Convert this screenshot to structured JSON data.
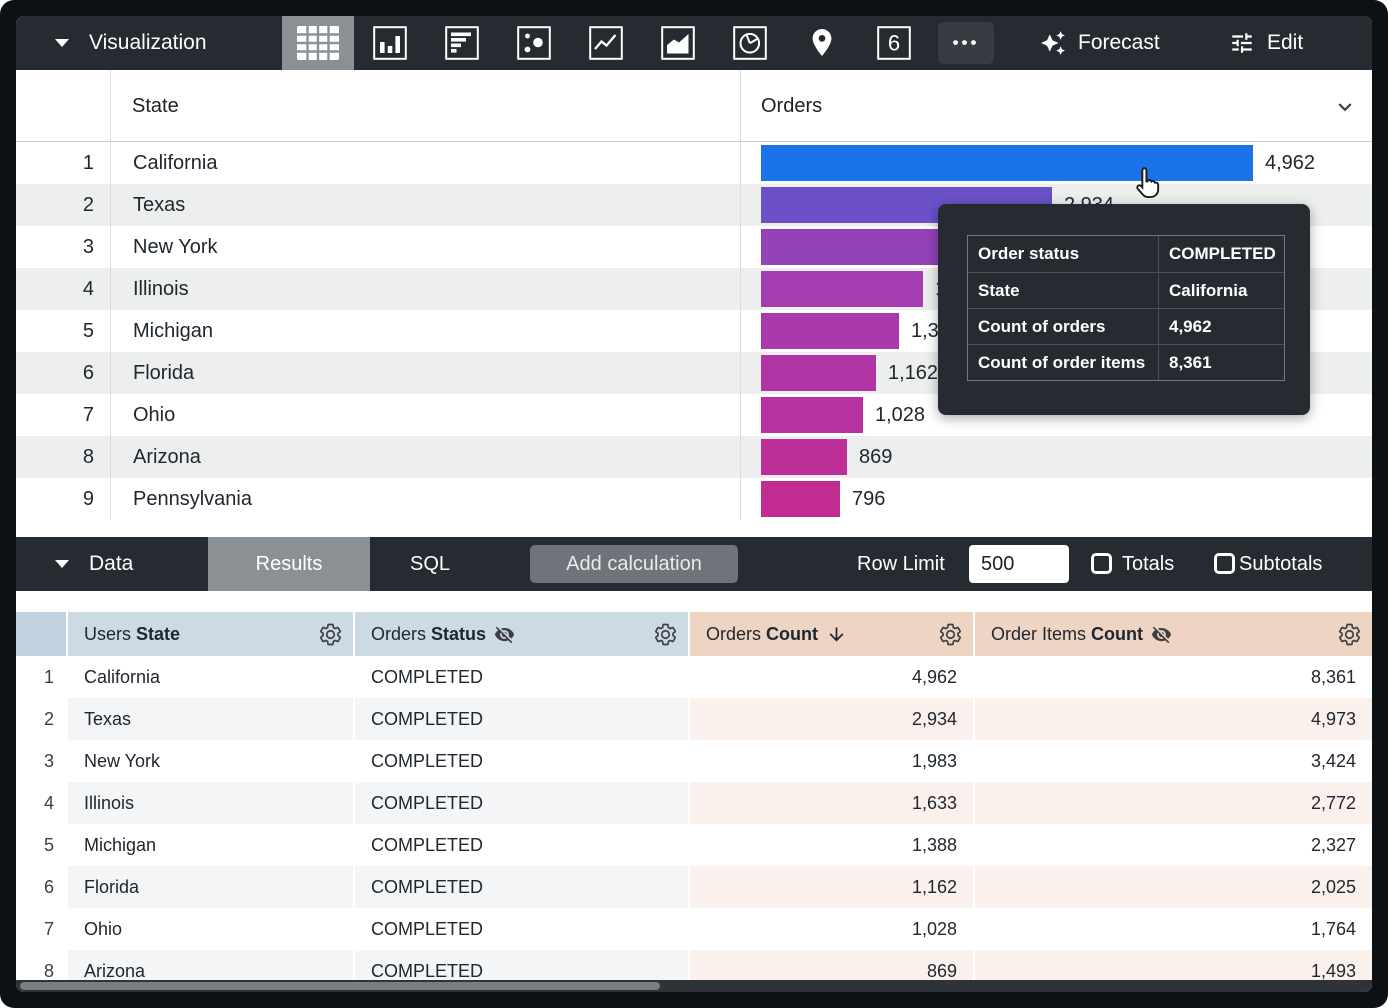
{
  "viz_toolbar": {
    "title": "Visualization",
    "single_value_label": "6",
    "more_label": "•••",
    "forecast_label": "Forecast",
    "edit_label": "Edit"
  },
  "viz_table": {
    "state_header": "State",
    "orders_header": "Orders",
    "rows": [
      {
        "num": "1",
        "state": "California",
        "value_label": "4,962",
        "value": 4962,
        "color": "#1a73e8"
      },
      {
        "num": "2",
        "state": "Texas",
        "value_label": "2,934",
        "value": 2934,
        "color": "#6b50c8"
      },
      {
        "num": "3",
        "state": "New York",
        "value_label": "1,983",
        "value": 1983,
        "color": "#9343b8"
      },
      {
        "num": "4",
        "state": "Illinois",
        "value_label": "1,633",
        "value": 1633,
        "color": "#a43cb2"
      },
      {
        "num": "5",
        "state": "Michigan",
        "value_label": "1,388",
        "value": 1388,
        "color": "#aa39ac"
      },
      {
        "num": "6",
        "state": "Florida",
        "value_label": "1,162",
        "value": 1162,
        "color": "#b235a5"
      },
      {
        "num": "7",
        "state": "Ohio",
        "value_label": "1,028",
        "value": 1028,
        "color": "#b832a0"
      },
      {
        "num": "8",
        "state": "Arizona",
        "value_label": "869",
        "value": 869,
        "color": "#bd2f99"
      },
      {
        "num": "9",
        "state": "Pennsylvania",
        "value_label": "796",
        "value": 796,
        "color": "#c12c93"
      }
    ]
  },
  "chart_data": {
    "type": "bar",
    "orientation": "horizontal",
    "categories": [
      "California",
      "Texas",
      "New York",
      "Illinois",
      "Michigan",
      "Florida",
      "Ohio",
      "Arizona",
      "Pennsylvania"
    ],
    "values": [
      4962,
      2934,
      1983,
      1633,
      1388,
      1162,
      1028,
      869,
      796
    ],
    "series_name": "Orders Count",
    "xlim": [
      0,
      5000
    ]
  },
  "tooltip": {
    "rows": [
      {
        "label": "Order status",
        "value": "COMPLETED"
      },
      {
        "label": "State",
        "value": "California"
      },
      {
        "label": "Count of orders",
        "value": "4,962"
      },
      {
        "label": "Count of order items",
        "value": "8,361"
      }
    ]
  },
  "data_toolbar": {
    "title": "Data",
    "results_tab": "Results",
    "sql_tab": "SQL",
    "add_calculation": "Add calculation",
    "row_limit_label": "Row Limit",
    "row_limit_value": "500",
    "totals_label": "Totals",
    "subtotals_label": "Subtotals"
  },
  "data_table": {
    "headers": [
      {
        "prefix": "Users",
        "bold": "State"
      },
      {
        "prefix": "Orders",
        "bold": "Status"
      },
      {
        "prefix": "Orders",
        "bold": "Count"
      },
      {
        "prefix": "Order Items",
        "bold": "Count"
      }
    ],
    "rows": [
      {
        "num": "1",
        "state": "California",
        "status": "COMPLETED",
        "orders": "4,962",
        "items": "8,361"
      },
      {
        "num": "2",
        "state": "Texas",
        "status": "COMPLETED",
        "orders": "2,934",
        "items": "4,973"
      },
      {
        "num": "3",
        "state": "New York",
        "status": "COMPLETED",
        "orders": "1,983",
        "items": "3,424"
      },
      {
        "num": "4",
        "state": "Illinois",
        "status": "COMPLETED",
        "orders": "1,633",
        "items": "2,772"
      },
      {
        "num": "5",
        "state": "Michigan",
        "status": "COMPLETED",
        "orders": "1,388",
        "items": "2,327"
      },
      {
        "num": "6",
        "state": "Florida",
        "status": "COMPLETED",
        "orders": "1,162",
        "items": "2,025"
      },
      {
        "num": "7",
        "state": "Ohio",
        "status": "COMPLETED",
        "orders": "1,028",
        "items": "1,764"
      },
      {
        "num": "8",
        "state": "Arizona",
        "status": "COMPLETED",
        "orders": "869",
        "items": "1,493"
      }
    ]
  },
  "colors": {
    "toolbar_bg": "#262b31",
    "selected_tile_bg": "#8b9095",
    "dimension_header_bg": "#ccdae3",
    "measure_header_bg": "#eed5c3",
    "hovered_bar": "#1a73e8",
    "row_stripe": "#edefef",
    "measure_stripe": "#faf1ec"
  }
}
